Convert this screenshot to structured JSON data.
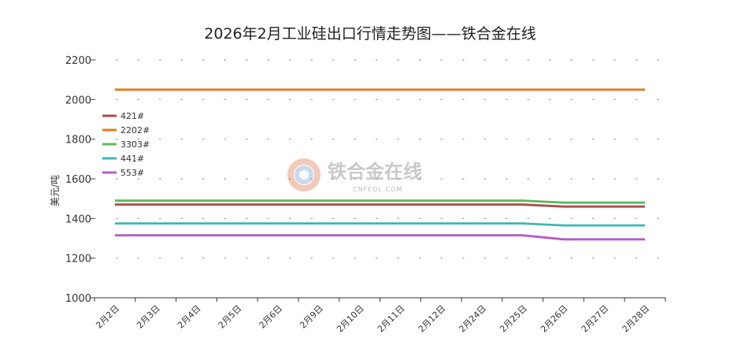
{
  "chart_data": {
    "type": "line",
    "title": "2026年2月工业硅出口行情走势图——铁合金在线",
    "ylabel": "美元/吨",
    "xlabel": "",
    "ylim": [
      1000,
      2200
    ],
    "yticks": [
      1000,
      1200,
      1400,
      1600,
      1800,
      2000,
      2200
    ],
    "grid": true,
    "legend_position": "left",
    "categories": [
      "2月2日",
      "2月3日",
      "2月4日",
      "2月5日",
      "2月6日",
      "2月9日",
      "2月10日",
      "2月11日",
      "2月12日",
      "2月24日",
      "2月25日",
      "2月26日",
      "2月27日",
      "2月28日"
    ],
    "series": [
      {
        "name": "421#",
        "color": "#a94e4c",
        "values": [
          1470,
          1470,
          1470,
          1470,
          1470,
          1470,
          1470,
          1470,
          1470,
          1470,
          1470,
          1460,
          1460,
          1460
        ]
      },
      {
        "name": "2202#",
        "color": "#e07a1f",
        "values": [
          2050,
          2050,
          2050,
          2050,
          2050,
          2050,
          2050,
          2050,
          2050,
          2050,
          2050,
          2050,
          2050,
          2050
        ]
      },
      {
        "name": "3303#",
        "color": "#5cb85c",
        "values": [
          1490,
          1490,
          1490,
          1490,
          1490,
          1490,
          1490,
          1490,
          1490,
          1490,
          1490,
          1480,
          1480,
          1480
        ]
      },
      {
        "name": "441#",
        "color": "#3db7b0",
        "values": [
          1375,
          1375,
          1375,
          1375,
          1375,
          1375,
          1375,
          1375,
          1375,
          1375,
          1375,
          1365,
          1365,
          1365
        ]
      },
      {
        "name": "553#",
        "color": "#b45bc7",
        "values": [
          1315,
          1315,
          1315,
          1315,
          1315,
          1315,
          1315,
          1315,
          1315,
          1315,
          1315,
          1295,
          1295,
          1295
        ]
      }
    ]
  },
  "watermark": {
    "name": "铁合金在线",
    "domain": "CNFEOL.COM"
  }
}
